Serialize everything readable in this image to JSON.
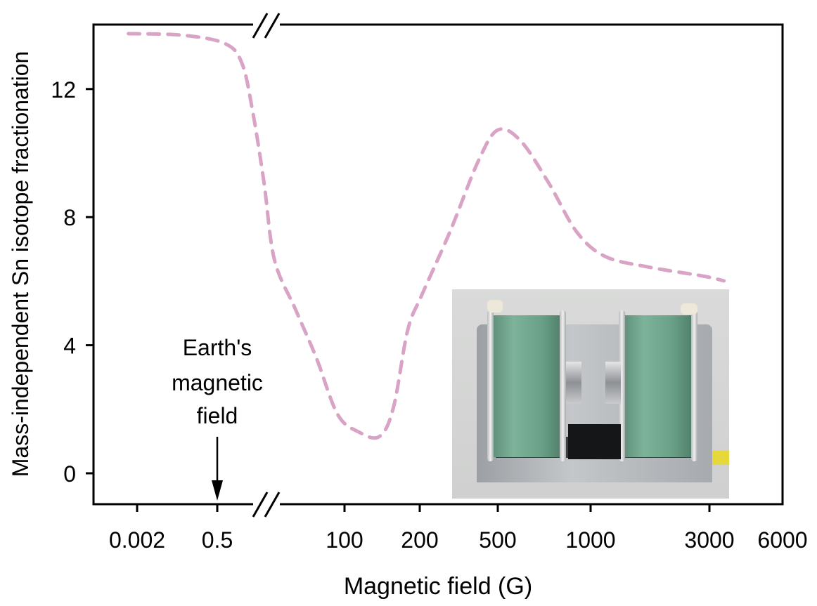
{
  "chart_data": {
    "type": "line",
    "title": "",
    "xlabel": "Magnetic field (G)",
    "ylabel": "Mass-independent Sn isotope fractionation",
    "x_scale": "log, broken axis",
    "x_ticks": [
      0.002,
      0.5,
      100,
      200,
      500,
      1000,
      3000,
      6000
    ],
    "x_tick_labels": [
      "0.002",
      "0.5",
      "100",
      "200",
      "500",
      "1000",
      "3000",
      "6000"
    ],
    "y_ticks": [
      0,
      4,
      8,
      12
    ],
    "y_tick_labels": [
      "0",
      "4",
      "8",
      "12"
    ],
    "ylim": [
      -1,
      14
    ],
    "xlim": [
      0.0011,
      6000
    ],
    "grid": false,
    "axis_break": "between 0.5 and 100",
    "series": [
      {
        "color": "#d9a3c6",
        "style": "dashed",
        "x": [
          0.0011,
          0.047,
          0.69,
          1.4,
          2.2,
          3.5,
          5.4,
          12.9,
          31,
          75,
          114,
          138,
          157,
          179,
          205,
          285,
          397,
          500,
          592,
          730,
          901,
          1139,
          1682,
          2826,
          3443
        ],
        "y": [
          13.73,
          13.68,
          13.42,
          12.8,
          11.27,
          9.08,
          6.67,
          5.13,
          3.6,
          1.84,
          1.29,
          1.15,
          2.06,
          4.47,
          5.57,
          7.54,
          9.74,
          10.72,
          10.39,
          9.08,
          7.54,
          6.78,
          6.45,
          6.16,
          6.01
        ]
      }
    ],
    "annotations": [
      {
        "lines": [
          "Earth's",
          "magnetic",
          "field"
        ],
        "x": 0.5,
        "arrow": "down"
      }
    ],
    "inset": "photo of Helmholtz-type electromagnet with two green coils"
  }
}
